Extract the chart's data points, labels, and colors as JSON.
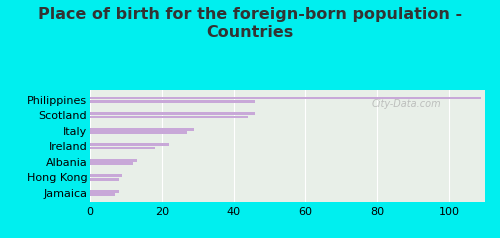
{
  "title": "Place of birth for the foreign-born population -\nCountries",
  "categories": [
    "Philippines",
    "Scotland",
    "Italy",
    "Ireland",
    "Albania",
    "Hong Kong",
    "Jamaica"
  ],
  "values1": [
    109,
    46,
    29,
    22,
    13,
    9,
    8
  ],
  "values2": [
    46,
    44,
    27,
    18,
    12,
    8,
    7
  ],
  "bar_color": "#c8a8d8",
  "background_outer": "#00efef",
  "background_inner_top": "#e8efe8",
  "background_inner_bottom": "#d8edd8",
  "xlim": [
    0,
    110
  ],
  "xticks": [
    0,
    20,
    40,
    60,
    80,
    100
  ],
  "title_fontsize": 11.5,
  "tick_fontsize": 8,
  "label_fontsize": 8,
  "watermark": "City-Data.com"
}
